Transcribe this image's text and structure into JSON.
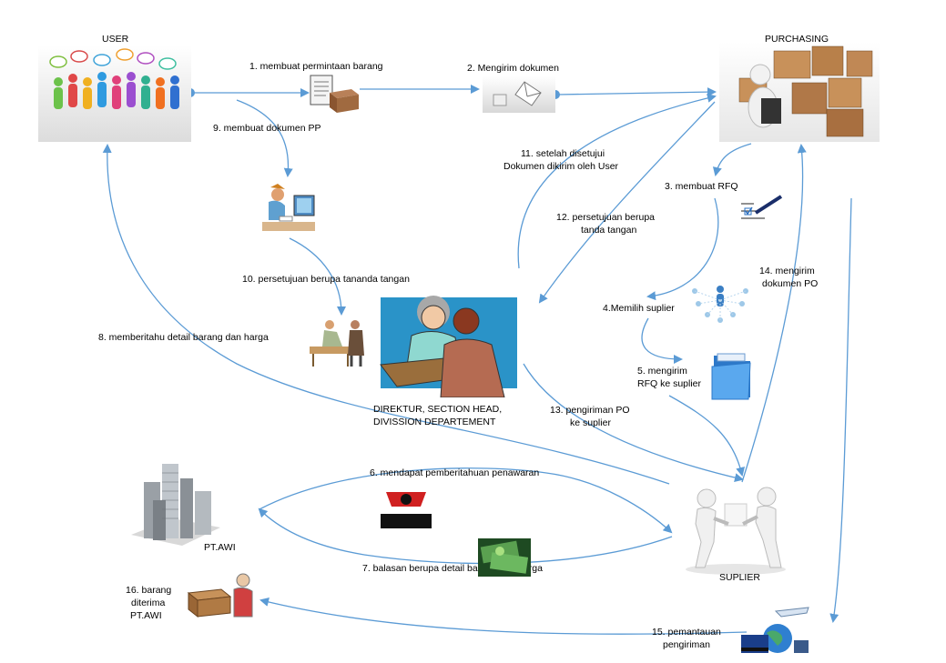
{
  "actors": {
    "user": "USER",
    "purchasing": "PURCHASING",
    "director": [
      "DIREKTUR, SECTION HEAD,",
      "DIVISSION DEPARTEMENT"
    ],
    "supplier": "SUPLIER",
    "company": "PT.AWI"
  },
  "steps": {
    "s1": "1. membuat permintaan barang",
    "s2": "2. Mengirim dokumen",
    "s3": "3. membuat RFQ",
    "s4": "4.Memilih suplier",
    "s5": [
      "5. mengirim",
      "RFQ ke suplier"
    ],
    "s6": "6. mendapat pemberitahuan  penawaran",
    "s7": "7. balasan berupa detail barang dan harga",
    "s8": "8. memberitahu detail barang dan harga",
    "s9": "9. membuat dokumen PP",
    "s10": "10.  persetujuan berupa tananda tangan",
    "s11": [
      "11. setelah disetujui",
      "Dokumen dikirim oleh User"
    ],
    "s12": [
      "12. persetujuan berupa",
      "tanda tangan"
    ],
    "s13": [
      "13. pengiriman PO",
      "ke suplier"
    ],
    "s14": [
      "14. mengirim",
      "dokumen PO"
    ],
    "s15": [
      "15. pemantauan",
      "pengiriman"
    ],
    "s16": [
      "16. barang",
      "diterima",
      "PT.AWI"
    ]
  },
  "colors": {
    "arrow": "#5b9bd5"
  }
}
